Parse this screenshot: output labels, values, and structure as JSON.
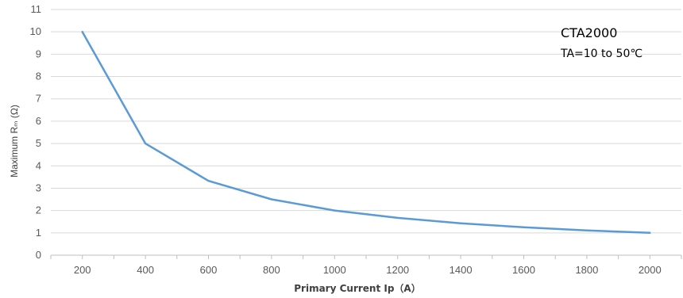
{
  "chart_data": {
    "type": "line",
    "title": "",
    "xlabel": "Primary Current Ip（A）",
    "ylabel": "Maximum Rₘ (Ω)",
    "x": [
      200,
      400,
      600,
      800,
      1000,
      1200,
      1400,
      1600,
      1800,
      2000
    ],
    "series": [
      {
        "values": [
          10,
          5,
          3.33,
          2.5,
          2,
          1.67,
          1.43,
          1.25,
          1.11,
          1
        ]
      }
    ],
    "x_ticks": [
      200,
      400,
      600,
      800,
      1000,
      1200,
      1400,
      1600,
      1800,
      2000
    ],
    "y_ticks": [
      0,
      1,
      2,
      3,
      4,
      5,
      6,
      7,
      8,
      9,
      10,
      11
    ],
    "xlim": [
      100,
      2100
    ],
    "ylim": [
      0,
      11
    ],
    "grid": "horizontal",
    "line_color": "#5b9bd5",
    "annotations": {
      "model": "CTA2000",
      "condition": "TA=10 to 50℃"
    }
  }
}
